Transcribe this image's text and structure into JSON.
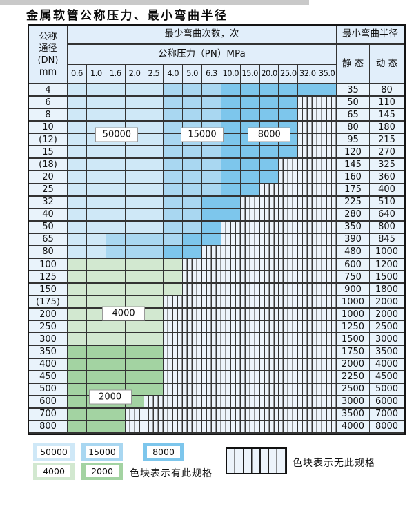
{
  "page_title": "金属软管公称压力、最小弯曲半径",
  "colors": {
    "c50000": "#cfe8f7",
    "c15000": "#a9d7f1",
    "c8000": "#7dc6ec",
    "c4000": "#d2e8d0",
    "c2000": "#a3d3a2",
    "striped_bg": "#edf4fb",
    "header_bg": "#e1eefa",
    "side_bg": "#e9f3fb",
    "grid_line": "#333333"
  },
  "table": {
    "corner": {
      "lines": [
        "公称",
        "通径",
        "(DN)",
        "mm"
      ]
    },
    "bend_cycles_header": "最少弯曲次数，次",
    "pressure_header": "公称压力（PN）MPa",
    "pressure_columns": [
      "0.6",
      "1.0",
      "1.6",
      "2.0",
      "2.5",
      "4.0",
      "5.0",
      "6.3",
      "10.0",
      "15.0",
      "20.0",
      "25.0",
      "32.0",
      "35.0"
    ],
    "radius_header": "最小弯曲半径",
    "static_header": "静 态",
    "dynamic_header": "动 态",
    "rows": [
      {
        "dn": "4",
        "cells": "LLLLLMMMDDDDDD",
        "static": "35",
        "dynamic": "80"
      },
      {
        "dn": "6",
        "cells": "LLLLLMMMDDDDSS",
        "static": "50",
        "dynamic": "110"
      },
      {
        "dn": "8",
        "cells": "LLLLLMMMDDDDSS",
        "static": "65",
        "dynamic": "145"
      },
      {
        "dn": "10",
        "cells": "LLLLLMMMDDDDSS",
        "static": "80",
        "dynamic": "180"
      },
      {
        "dn": "(12)",
        "cells": "LLLLLMMMDDDDSS",
        "static": "95",
        "dynamic": "215"
      },
      {
        "dn": "15",
        "cells": "LLLLLMMMDDDDSS",
        "static": "120",
        "dynamic": "270"
      },
      {
        "dn": "(18)",
        "cells": "LLLLLMMMDDDSSS",
        "static": "145",
        "dynamic": "325"
      },
      {
        "dn": "20",
        "cells": "LLLLLMMMDDDSSS",
        "static": "160",
        "dynamic": "360"
      },
      {
        "dn": "25",
        "cells": "LLLLLMMMDDSSSS",
        "static": "175",
        "dynamic": "400"
      },
      {
        "dn": "32",
        "cells": "LLLLLMMDDSSSSS",
        "static": "225",
        "dynamic": "510"
      },
      {
        "dn": "40",
        "cells": "LLLLLMMDDSSSSS",
        "static": "280",
        "dynamic": "640"
      },
      {
        "dn": "50",
        "cells": "LLLLLMMDSSSSSS",
        "static": "350",
        "dynamic": "800"
      },
      {
        "dn": "65",
        "cells": "LLMMMMDDSSSSSS",
        "static": "390",
        "dynamic": "845"
      },
      {
        "dn": "80",
        "cells": "LLMMMDDSSSSSSS",
        "static": "480",
        "dynamic": "1000"
      },
      {
        "dn": "100",
        "cells": "GGGGGGSSSSSSSS",
        "static": "600",
        "dynamic": "1200"
      },
      {
        "dn": "125",
        "cells": "GGGGGGSSSSSSSS",
        "static": "750",
        "dynamic": "1500"
      },
      {
        "dn": "150",
        "cells": "GGGGGGSSSSSSSS",
        "static": "900",
        "dynamic": "1800"
      },
      {
        "dn": "(175)",
        "cells": "GGGGGSSSSSSSSS",
        "static": "1000",
        "dynamic": "2000"
      },
      {
        "dn": "200",
        "cells": "GGGGGSSSSSSSSS",
        "static": "1000",
        "dynamic": "2000"
      },
      {
        "dn": "250",
        "cells": "GGGGGSSSSSSSSS",
        "static": "1250",
        "dynamic": "2500"
      },
      {
        "dn": "300",
        "cells": "GGGGGSSSSSSSSS",
        "static": "1500",
        "dynamic": "3000"
      },
      {
        "dn": "350",
        "cells": "HHHHHSSSSSSSSS",
        "static": "1750",
        "dynamic": "3500"
      },
      {
        "dn": "400",
        "cells": "HHHHHSSSSSSSSS",
        "static": "2000",
        "dynamic": "4000"
      },
      {
        "dn": "450",
        "cells": "HHHHHSSSSSSSSS",
        "static": "2250",
        "dynamic": "4500"
      },
      {
        "dn": "500",
        "cells": "HHHHHSSSSSSSSS",
        "static": "2500",
        "dynamic": "5000"
      },
      {
        "dn": "600",
        "cells": "HHHHSSSSSSSSSS",
        "static": "3000",
        "dynamic": "6000"
      },
      {
        "dn": "700",
        "cells": "HHHSSSSSSSSSSS",
        "static": "3500",
        "dynamic": "7000"
      },
      {
        "dn": "800",
        "cells": "HHHSSSSSSSSSSS",
        "static": "4000",
        "dynamic": "8000"
      }
    ],
    "inline_labels": [
      {
        "text": "50000",
        "col": 2.55,
        "row": 4.0
      },
      {
        "text": "15000",
        "col": 7.0,
        "row": 4.0
      },
      {
        "text": "8000",
        "col": 10.5,
        "row": 4.0
      },
      {
        "text": "4000",
        "col": 2.9,
        "row": 18.4
      },
      {
        "text": "2000",
        "col": 2.2,
        "row": 25.1
      }
    ]
  },
  "legend": {
    "has_spec_items": [
      {
        "label": "50000",
        "color_key": "c50000"
      },
      {
        "label": "15000",
        "color_key": "c15000"
      },
      {
        "label": "8000",
        "color_key": "c8000"
      },
      {
        "label": "4000",
        "color_key": "c4000"
      },
      {
        "label": "2000",
        "color_key": "c2000"
      }
    ],
    "has_spec_note": "色块表示有此规格",
    "no_spec_note": "色块表示无此规格"
  },
  "chart_data": {
    "type": "heatmap",
    "title": "金属软管公称压力、最小弯曲半径",
    "x_label": "公称压力（PN）MPa",
    "x_ticks": [
      "0.6",
      "1.0",
      "1.6",
      "2.0",
      "2.5",
      "4.0",
      "5.0",
      "6.3",
      "10.0",
      "15.0",
      "20.0",
      "25.0",
      "32.0",
      "35.0"
    ],
    "y_label": "公称通径(DN) mm",
    "y_ticks": [
      "4",
      "6",
      "8",
      "10",
      "(12)",
      "15",
      "(18)",
      "20",
      "25",
      "32",
      "40",
      "50",
      "65",
      "80",
      "100",
      "125",
      "150",
      "(175)",
      "200",
      "250",
      "300",
      "350",
      "400",
      "450",
      "500",
      "600",
      "700",
      "800"
    ],
    "cell_code_legend": {
      "L": "50000次",
      "M": "15000次",
      "D": "8000次",
      "G": "4000次",
      "H": "2000次",
      "S": "无此规格"
    },
    "matrix": [
      "LLLLLMMMDDDDDD",
      "LLLLLMMMDDDDSS",
      "LLLLLMMMDDDDSS",
      "LLLLLMMMDDDDSS",
      "LLLLLMMMDDDDSS",
      "LLLLLMMMDDDDSS",
      "LLLLLMMMDDDSSS",
      "LLLLLMMMDDDSSS",
      "LLLLLMMMDDSSSS",
      "LLLLLMMDDSSSSS",
      "LLLLLMMDDSSSSS",
      "LLLLLMMDSSSSSS",
      "LLMMMMDDSSSSSS",
      "LLMMMDDSSSSSSS",
      "GGGGGGSSSSSSSS",
      "GGGGGGSSSSSSSS",
      "GGGGGGSSSSSSSS",
      "GGGGGSSSSSSSSS",
      "GGGGGSSSSSSSSS",
      "GGGGGSSSSSSSSS",
      "GGGGGSSSSSSSSS",
      "HHHHHSSSSSSSSS",
      "HHHHHSSSSSSSSS",
      "HHHHHSSSSSSSSS",
      "HHHHHSSSSSSSSS",
      "HHHHSSSSSSSSSS",
      "HHHSSSSSSSSSSS",
      "HHHSSSSSSSSSSS"
    ],
    "series": [
      {
        "name": "最小弯曲半径 静态",
        "values": [
          35,
          50,
          65,
          80,
          95,
          120,
          145,
          160,
          175,
          225,
          280,
          350,
          390,
          480,
          600,
          750,
          900,
          1000,
          1000,
          1250,
          1500,
          1750,
          2000,
          2250,
          2500,
          3000,
          3500,
          4000
        ]
      },
      {
        "name": "最小弯曲半径 动态",
        "values": [
          80,
          110,
          145,
          180,
          215,
          270,
          325,
          360,
          400,
          510,
          640,
          800,
          845,
          1000,
          1200,
          1500,
          1800,
          2000,
          2000,
          2500,
          3000,
          3500,
          4000,
          4500,
          5000,
          6000,
          7000,
          8000
        ]
      }
    ],
    "legend_position": "bottom",
    "grid": true
  }
}
